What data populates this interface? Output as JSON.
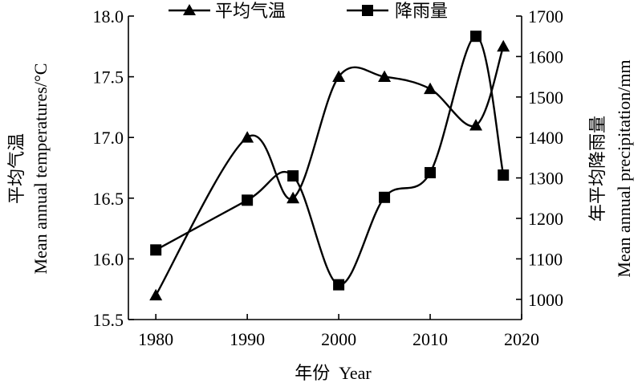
{
  "chart_data": {
    "type": "line",
    "legend": {
      "placement": "top",
      "entries": [
        "平均气温",
        "降雨量"
      ]
    },
    "x": [
      1980,
      1990,
      1995,
      2000,
      2005,
      2010,
      2015,
      2018
    ],
    "xlabel": "年份  Year",
    "xlim": [
      1977,
      2020
    ],
    "xticks": [
      1980,
      1990,
      2000,
      2010,
      2020
    ],
    "ylabel_left": {
      "cn": "平均气温",
      "en": "Mean annual temperatures/°C"
    },
    "ylabel_right": {
      "cn": "年平均降雨量",
      "en": "Mean annual precipitation/mm"
    },
    "ylim_left": [
      15.5,
      18.0
    ],
    "yticks_left": [
      "15.5",
      "16.0",
      "16.5",
      "17.0",
      "17.5",
      "18.0"
    ],
    "ylim_right": [
      950,
      1700
    ],
    "yticks_right": [
      "1000",
      "1100",
      "1200",
      "1300",
      "1400",
      "1500",
      "1600",
      "1700"
    ],
    "grid": false,
    "series": [
      {
        "name": "平均气温",
        "axis": "left",
        "marker": "triangle",
        "values": [
          15.7,
          17.0,
          16.5,
          17.5,
          17.5,
          17.4,
          17.1,
          17.75
        ]
      },
      {
        "name": "降雨量",
        "axis": "right",
        "marker": "square",
        "values": [
          1122,
          1245,
          1305,
          1036,
          1252,
          1313,
          1650,
          1307
        ]
      }
    ]
  }
}
